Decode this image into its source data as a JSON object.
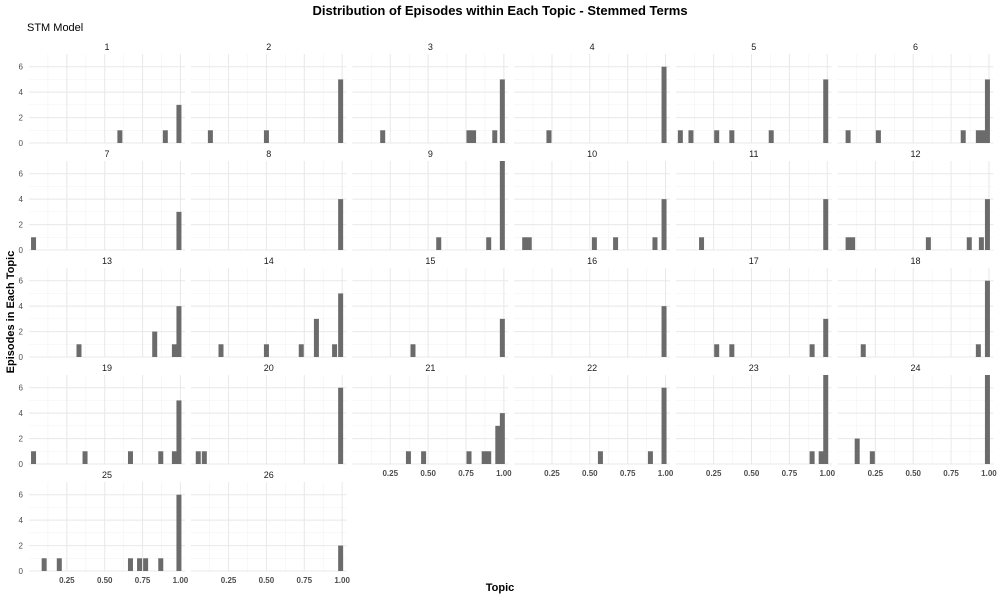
{
  "chart_data": {
    "type": "bar",
    "title": "Distribution of Episodes within Each Topic - Stemmed Terms",
    "subtitle": "STM Model",
    "xlabel": "Topic",
    "ylabel": "Episodes in Each Topic",
    "xlim": [
      0,
      1.03
    ],
    "ylim": [
      0,
      7
    ],
    "x_ticks": [
      "0.25",
      "0.50",
      "0.75",
      "1.00"
    ],
    "x_tick_values": [
      0.25,
      0.5,
      0.75,
      1.0
    ],
    "y_ticks": [
      "0",
      "2",
      "4",
      "6"
    ],
    "y_tick_values": [
      0,
      2,
      4,
      6
    ],
    "bin_width": 0.033,
    "grid": true,
    "columns": 6,
    "facets": [
      {
        "label": "1",
        "bars": [
          {
            "x": 0.6,
            "y": 1
          },
          {
            "x": 0.9,
            "y": 1
          },
          {
            "x": 0.99,
            "y": 3
          }
        ]
      },
      {
        "label": "2",
        "bars": [
          {
            "x": 0.13,
            "y": 1
          },
          {
            "x": 0.5,
            "y": 1
          },
          {
            "x": 0.99,
            "y": 5
          }
        ]
      },
      {
        "label": "3",
        "bars": [
          {
            "x": 0.2,
            "y": 1
          },
          {
            "x": 0.77,
            "y": 1
          },
          {
            "x": 0.8,
            "y": 1
          },
          {
            "x": 0.94,
            "y": 1
          },
          {
            "x": 0.99,
            "y": 5
          }
        ]
      },
      {
        "label": "4",
        "bars": [
          {
            "x": 0.23,
            "y": 1
          },
          {
            "x": 0.99,
            "y": 6
          }
        ]
      },
      {
        "label": "5",
        "bars": [
          {
            "x": 0.03,
            "y": 1
          },
          {
            "x": 0.1,
            "y": 1
          },
          {
            "x": 0.27,
            "y": 1
          },
          {
            "x": 0.37,
            "y": 1
          },
          {
            "x": 0.63,
            "y": 1
          },
          {
            "x": 0.99,
            "y": 5
          }
        ]
      },
      {
        "label": "6",
        "bars": [
          {
            "x": 0.07,
            "y": 1
          },
          {
            "x": 0.27,
            "y": 1
          },
          {
            "x": 0.83,
            "y": 1
          },
          {
            "x": 0.93,
            "y": 1
          },
          {
            "x": 0.96,
            "y": 1
          },
          {
            "x": 0.99,
            "y": 5
          }
        ]
      },
      {
        "label": "7",
        "bars": [
          {
            "x": 0.03,
            "y": 1
          },
          {
            "x": 0.99,
            "y": 3
          }
        ]
      },
      {
        "label": "8",
        "bars": [
          {
            "x": 0.99,
            "y": 4
          }
        ]
      },
      {
        "label": "9",
        "bars": [
          {
            "x": 0.57,
            "y": 1
          },
          {
            "x": 0.9,
            "y": 1
          },
          {
            "x": 0.99,
            "y": 7
          }
        ]
      },
      {
        "label": "10",
        "bars": [
          {
            "x": 0.07,
            "y": 1
          },
          {
            "x": 0.1,
            "y": 1
          },
          {
            "x": 0.53,
            "y": 1
          },
          {
            "x": 0.67,
            "y": 1
          },
          {
            "x": 0.93,
            "y": 1
          },
          {
            "x": 0.99,
            "y": 4
          }
        ]
      },
      {
        "label": "11",
        "bars": [
          {
            "x": 0.17,
            "y": 1
          },
          {
            "x": 0.99,
            "y": 4
          }
        ]
      },
      {
        "label": "12",
        "bars": [
          {
            "x": 0.07,
            "y": 1
          },
          {
            "x": 0.1,
            "y": 1
          },
          {
            "x": 0.6,
            "y": 1
          },
          {
            "x": 0.87,
            "y": 1
          },
          {
            "x": 0.95,
            "y": 1
          },
          {
            "x": 0.99,
            "y": 4
          }
        ]
      },
      {
        "label": "13",
        "bars": [
          {
            "x": 0.33,
            "y": 1
          },
          {
            "x": 0.83,
            "y": 2
          },
          {
            "x": 0.96,
            "y": 1
          },
          {
            "x": 0.99,
            "y": 4
          }
        ]
      },
      {
        "label": "14",
        "bars": [
          {
            "x": 0.2,
            "y": 1
          },
          {
            "x": 0.5,
            "y": 1
          },
          {
            "x": 0.73,
            "y": 1
          },
          {
            "x": 0.83,
            "y": 3
          },
          {
            "x": 0.95,
            "y": 1
          },
          {
            "x": 0.99,
            "y": 5
          }
        ]
      },
      {
        "label": "15",
        "bars": [
          {
            "x": 0.4,
            "y": 1
          },
          {
            "x": 0.99,
            "y": 3
          }
        ]
      },
      {
        "label": "16",
        "bars": [
          {
            "x": 0.99,
            "y": 4
          }
        ]
      },
      {
        "label": "17",
        "bars": [
          {
            "x": 0.27,
            "y": 1
          },
          {
            "x": 0.37,
            "y": 1
          },
          {
            "x": 0.9,
            "y": 1
          },
          {
            "x": 0.99,
            "y": 3
          }
        ]
      },
      {
        "label": "18",
        "bars": [
          {
            "x": 0.17,
            "y": 1
          },
          {
            "x": 0.93,
            "y": 1
          },
          {
            "x": 0.99,
            "y": 6
          }
        ]
      },
      {
        "label": "19",
        "bars": [
          {
            "x": 0.03,
            "y": 1
          },
          {
            "x": 0.37,
            "y": 1
          },
          {
            "x": 0.67,
            "y": 1
          },
          {
            "x": 0.87,
            "y": 1
          },
          {
            "x": 0.96,
            "y": 1
          },
          {
            "x": 0.99,
            "y": 5
          }
        ]
      },
      {
        "label": "20",
        "bars": [
          {
            "x": 0.05,
            "y": 1
          },
          {
            "x": 0.09,
            "y": 1
          },
          {
            "x": 0.99,
            "y": 6
          }
        ]
      },
      {
        "label": "21",
        "bars": [
          {
            "x": 0.37,
            "y": 1
          },
          {
            "x": 0.47,
            "y": 1
          },
          {
            "x": 0.77,
            "y": 1
          },
          {
            "x": 0.87,
            "y": 1
          },
          {
            "x": 0.9,
            "y": 1
          },
          {
            "x": 0.96,
            "y": 3
          },
          {
            "x": 0.99,
            "y": 4
          }
        ]
      },
      {
        "label": "22",
        "bars": [
          {
            "x": 0.57,
            "y": 1
          },
          {
            "x": 0.9,
            "y": 1
          },
          {
            "x": 0.99,
            "y": 6
          }
        ]
      },
      {
        "label": "23",
        "bars": [
          {
            "x": 0.9,
            "y": 1
          },
          {
            "x": 0.96,
            "y": 1
          },
          {
            "x": 0.99,
            "y": 7
          }
        ]
      },
      {
        "label": "24",
        "bars": [
          {
            "x": 0.13,
            "y": 2
          },
          {
            "x": 0.23,
            "y": 1
          },
          {
            "x": 0.99,
            "y": 7
          }
        ]
      },
      {
        "label": "25",
        "bars": [
          {
            "x": 0.1,
            "y": 1
          },
          {
            "x": 0.2,
            "y": 1
          },
          {
            "x": 0.67,
            "y": 1
          },
          {
            "x": 0.73,
            "y": 1
          },
          {
            "x": 0.77,
            "y": 1
          },
          {
            "x": 0.87,
            "y": 1
          },
          {
            "x": 0.99,
            "y": 6
          }
        ]
      },
      {
        "label": "26",
        "bars": [
          {
            "x": 0.99,
            "y": 2
          }
        ]
      }
    ],
    "colors": {
      "bar": "#6b6b6b",
      "grid": "#e8e8e8",
      "background": "#ffffff"
    }
  }
}
